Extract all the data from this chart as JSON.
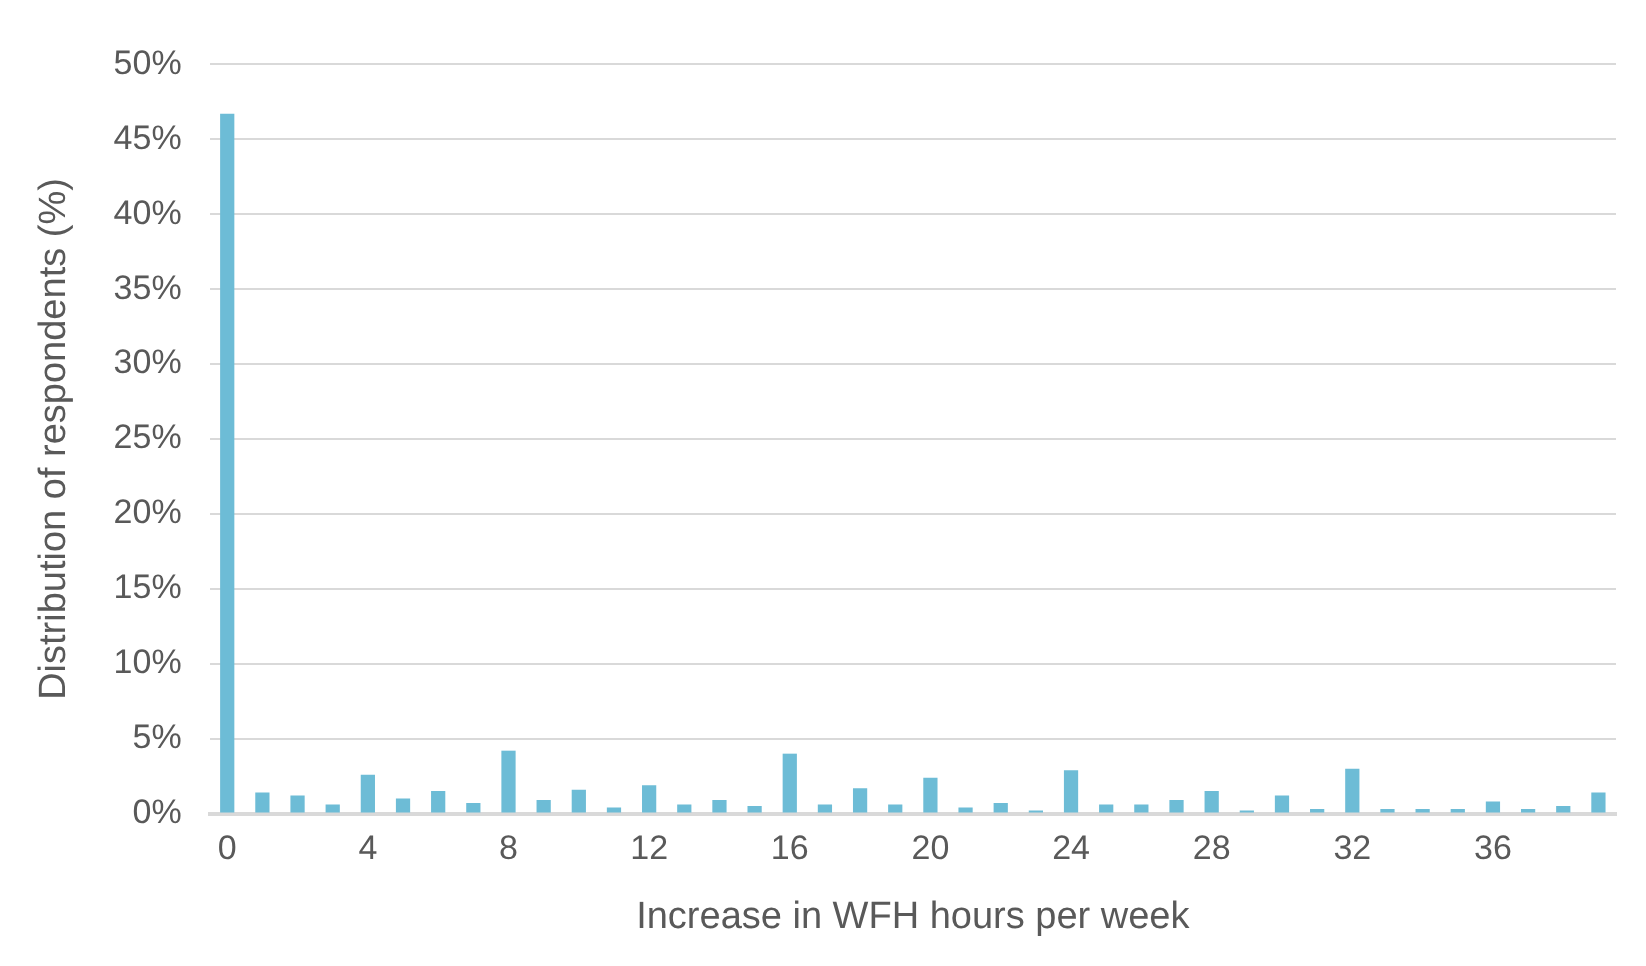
{
  "chart_data": {
    "type": "bar",
    "xlabel": "Increase in WFH hours per week",
    "ylabel": "Distribution of respondents (%)",
    "categories": [
      "0",
      null,
      null,
      null,
      "4",
      null,
      null,
      null,
      "8",
      null,
      null,
      null,
      "12",
      null,
      null,
      null,
      "16",
      null,
      null,
      null,
      "20",
      null,
      null,
      null,
      "24",
      null,
      null,
      null,
      "28",
      null,
      null,
      null,
      "32",
      null,
      null,
      null,
      "36",
      null,
      null,
      null
    ],
    "values": [
      46.7,
      1.4,
      1.2,
      0.6,
      2.6,
      1.0,
      1.5,
      0.7,
      4.2,
      0.9,
      1.6,
      0.4,
      1.9,
      0.6,
      0.9,
      0.5,
      4.0,
      0.6,
      1.7,
      0.6,
      2.4,
      0.4,
      0.7,
      0.2,
      2.9,
      0.6,
      0.6,
      0.9,
      1.5,
      0.2,
      1.2,
      0.3,
      3.0,
      0.3,
      0.3,
      0.3,
      0.8,
      0.3,
      0.5,
      1.4
    ],
    "color": "#6dbcd6",
    "ylim": [
      0,
      50
    ],
    "yticks": [
      {
        "value": 0,
        "label": "0%"
      },
      {
        "value": 5,
        "label": "5%"
      },
      {
        "value": 10,
        "label": "10%"
      },
      {
        "value": 15,
        "label": "15%"
      },
      {
        "value": 20,
        "label": "20%"
      },
      {
        "value": 25,
        "label": "25%"
      },
      {
        "value": 30,
        "label": "30%"
      },
      {
        "value": 35,
        "label": "35%"
      },
      {
        "value": 40,
        "label": "40%"
      },
      {
        "value": 45,
        "label": "45%"
      },
      {
        "value": 50,
        "label": "50%"
      }
    ],
    "grid": "y"
  }
}
